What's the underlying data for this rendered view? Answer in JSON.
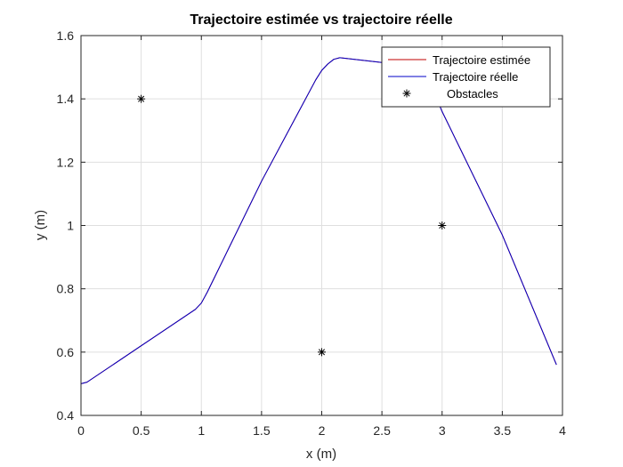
{
  "chart_data": {
    "type": "line",
    "title": "Trajectoire estimée vs trajectoire réelle",
    "xlabel": "x (m)",
    "ylabel": "y (m)",
    "xlim": [
      0,
      4
    ],
    "ylim": [
      0.4,
      1.6
    ],
    "xticks": [
      0,
      0.5,
      1,
      1.5,
      2,
      2.5,
      3,
      3.5,
      4
    ],
    "xtick_labels": [
      "0",
      "0.5",
      "1",
      "1.5",
      "2",
      "2.5",
      "3",
      "3.5",
      "4"
    ],
    "yticks": [
      0.4,
      0.6,
      0.8,
      1.0,
      1.2,
      1.4,
      1.6
    ],
    "ytick_labels": [
      "0.4",
      "0.6",
      "0.8",
      "1",
      "1.2",
      "1.4",
      "1.6"
    ],
    "grid": true,
    "legend_position": "top-right",
    "series": [
      {
        "name": "Trajectoire estimée",
        "color": "#c00000",
        "marker": "none",
        "x": [
          0,
          0.05,
          0.5,
          0.95,
          1.0,
          1.05,
          1.5,
          1.95,
          2.0,
          2.05,
          2.1,
          2.15,
          2.2,
          2.5,
          2.8,
          2.9,
          3.0,
          3.5,
          3.95
        ],
        "y": [
          0.5,
          0.505,
          0.62,
          0.735,
          0.755,
          0.79,
          1.14,
          1.46,
          1.49,
          1.51,
          1.525,
          1.53,
          1.528,
          1.515,
          1.5,
          1.45,
          1.36,
          0.97,
          0.56
        ]
      },
      {
        "name": "Trajectoire réelle",
        "color": "#0000c8",
        "marker": "none",
        "x": [
          0,
          0.05,
          0.5,
          0.95,
          1.0,
          1.05,
          1.5,
          1.95,
          2.0,
          2.05,
          2.1,
          2.15,
          2.2,
          2.5,
          2.8,
          2.9,
          3.0,
          3.5,
          3.95
        ],
        "y": [
          0.5,
          0.505,
          0.62,
          0.735,
          0.755,
          0.79,
          1.14,
          1.46,
          1.49,
          1.51,
          1.525,
          1.53,
          1.528,
          1.515,
          1.5,
          1.45,
          1.36,
          0.97,
          0.56
        ]
      },
      {
        "name": "Obstacles",
        "color": "#000000",
        "marker": "asterisk",
        "x": [
          0.5,
          2.0,
          3.0
        ],
        "y": [
          1.4,
          0.6,
          1.0
        ]
      }
    ]
  }
}
